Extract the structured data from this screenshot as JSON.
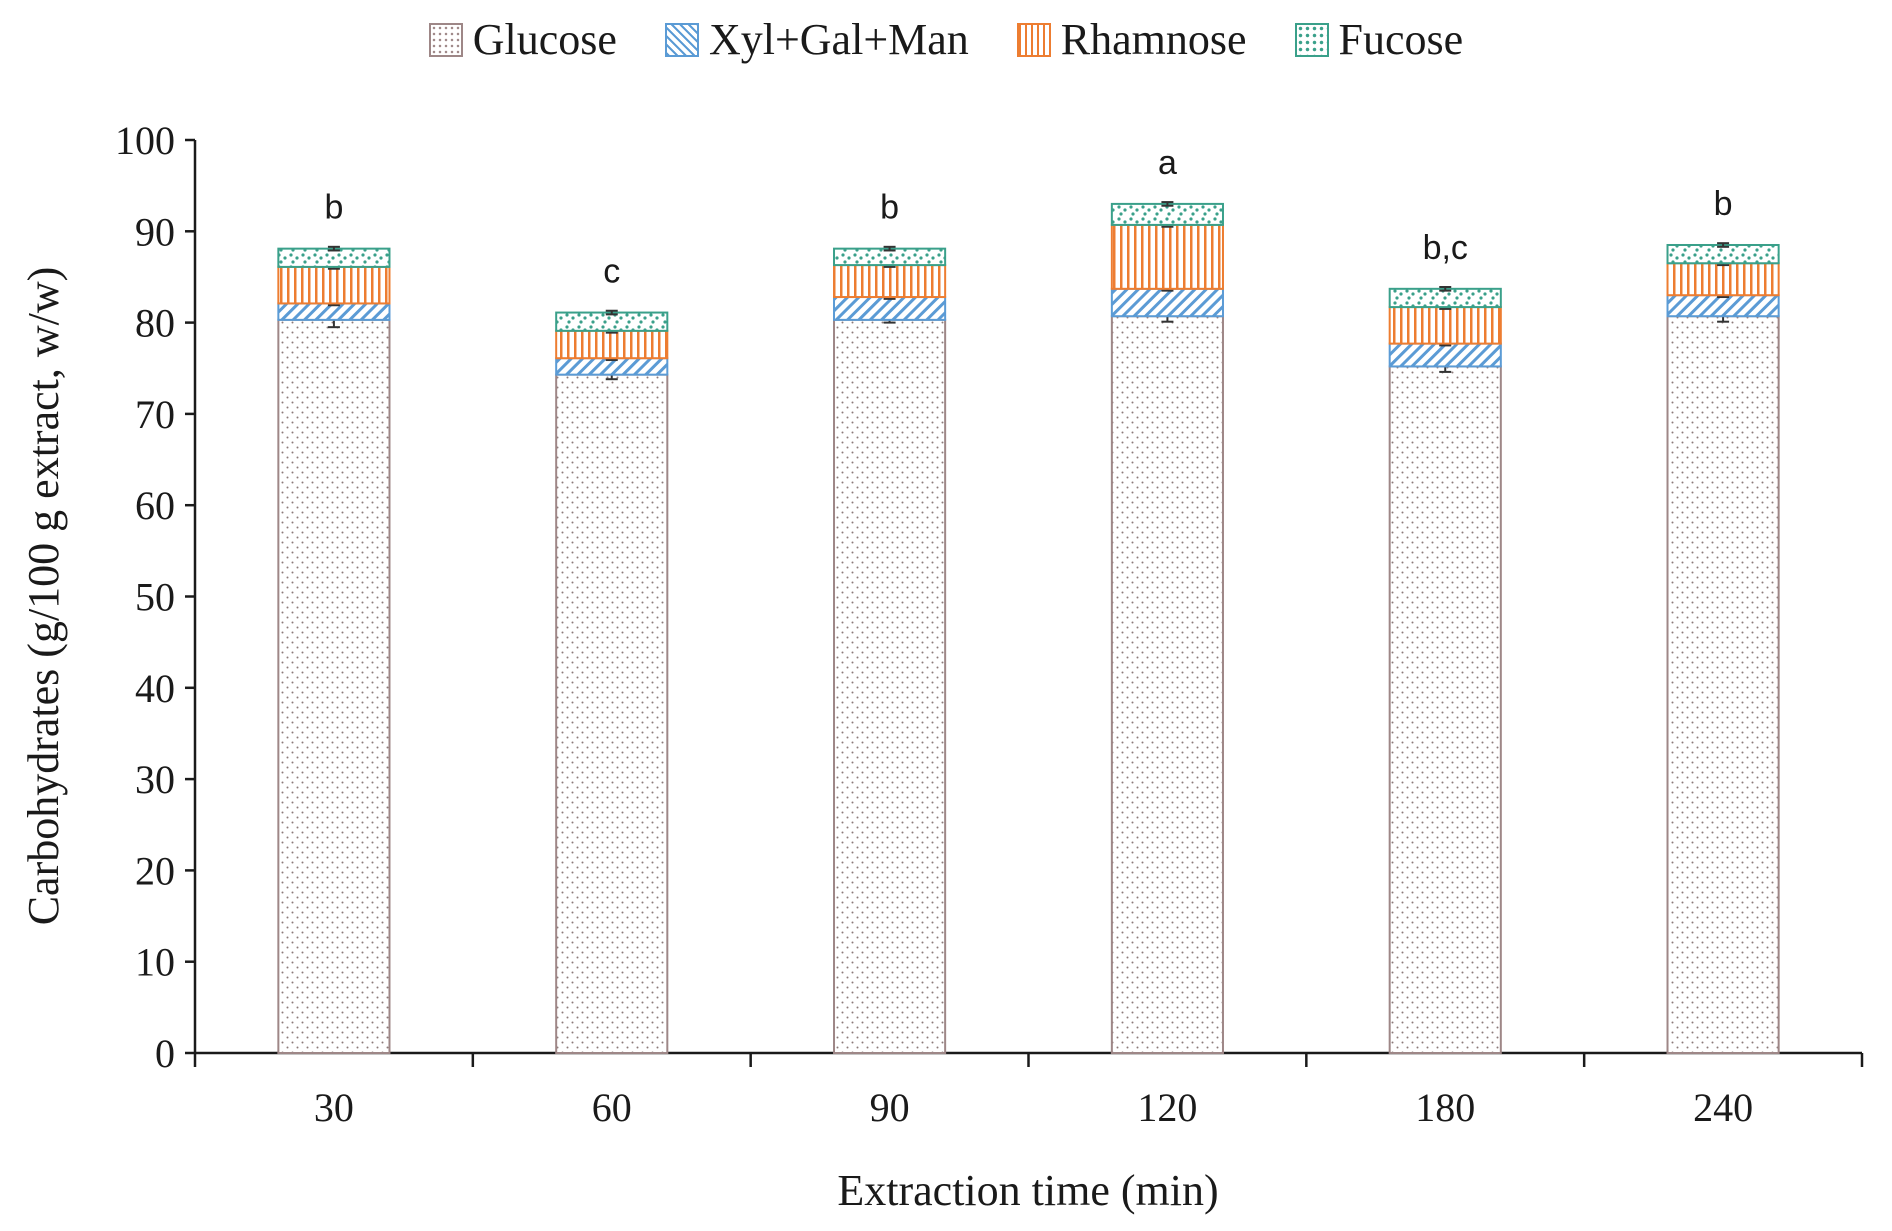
{
  "chart_data": {
    "type": "bar",
    "stacked": true,
    "title": "",
    "xlabel": "Extraction time (min)",
    "ylabel": "Carbohydrates (g/100 g extract, w/w)",
    "ylim": [
      0,
      100
    ],
    "yticks": [
      "0",
      "10",
      "20",
      "30",
      "40",
      "50",
      "60",
      "70",
      "80",
      "90",
      "100"
    ],
    "categories": [
      "30",
      "60",
      "90",
      "120",
      "180",
      "240"
    ],
    "series": [
      {
        "name": "Glucose",
        "color": "#9e8787",
        "pattern": "dots",
        "values": [
          80.3,
          74.3,
          80.3,
          80.7,
          75.2,
          80.7
        ],
        "errors": [
          0.8,
          0.5,
          0.3,
          0.6,
          0.6,
          0.6
        ]
      },
      {
        "name": "Xyl+Gal+Man",
        "color": "#5b9bd5",
        "pattern": "diagonal",
        "values": [
          1.8,
          1.8,
          2.5,
          3.0,
          2.5,
          2.3
        ],
        "errors": [
          0.2,
          0.2,
          0.2,
          0.2,
          0.2,
          0.2
        ]
      },
      {
        "name": "Rhamnose",
        "color": "#ed7d31",
        "pattern": "vertical",
        "values": [
          4.0,
          3.0,
          3.5,
          7.0,
          4.0,
          3.5
        ],
        "errors": [
          0.2,
          0.2,
          0.2,
          0.2,
          0.2,
          0.2
        ]
      },
      {
        "name": "Fucose",
        "color": "#3aa08a",
        "pattern": "confetti",
        "values": [
          2.0,
          2.0,
          1.8,
          2.3,
          2.0,
          2.0
        ],
        "errors": [
          0.2,
          0.2,
          0.2,
          0.2,
          0.2,
          0.2
        ]
      }
    ],
    "significance_labels": [
      "b",
      "c",
      "b",
      "a",
      "b,c",
      "b"
    ],
    "legend_position": "top-center",
    "grid": false
  }
}
